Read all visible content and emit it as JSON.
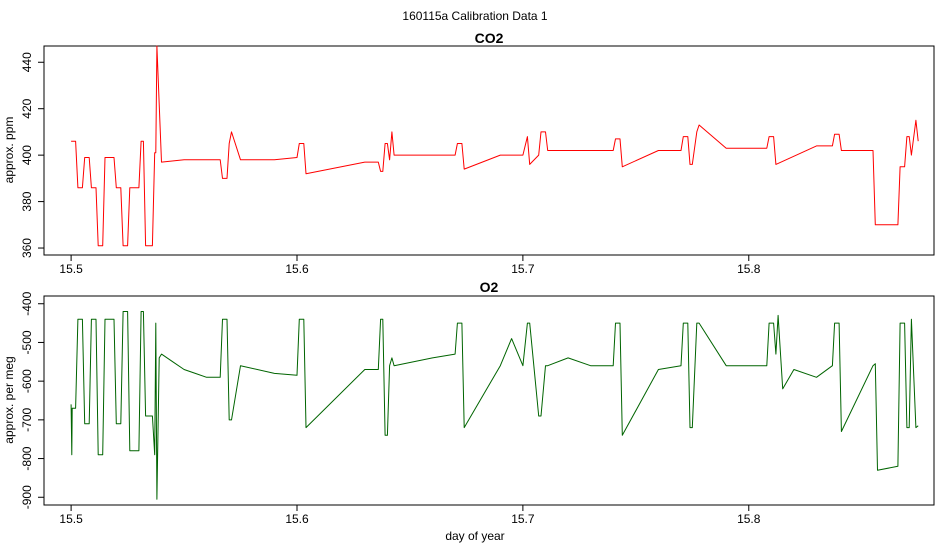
{
  "figure": {
    "title": "160115a   Calibration Data 1"
  },
  "chart_data": [
    {
      "type": "line",
      "title": "CO2",
      "xlabel": "",
      "ylabel": "approx. ppm",
      "color": "#ff0000",
      "xlim": [
        15.488,
        15.882
      ],
      "ylim": [
        357,
        447
      ],
      "x_ticks": [
        15.5,
        15.6,
        15.7,
        15.8
      ],
      "x_tick_labels": [
        "15.5",
        "15.6",
        "15.7",
        "15.8"
      ],
      "y_ticks": [
        360,
        380,
        400,
        420,
        440
      ],
      "y_tick_labels": [
        "360",
        "380",
        "400",
        "420",
        "440"
      ],
      "series": [
        {
          "x": [
            15.5,
            15.502,
            15.503,
            15.505,
            15.506,
            15.508,
            15.509,
            15.511,
            15.512,
            15.514,
            15.515,
            15.519,
            15.52,
            15.522,
            15.523,
            15.525,
            15.526,
            15.53,
            15.531,
            15.532,
            15.533,
            15.536,
            15.537,
            15.5375,
            15.538,
            15.54,
            15.55,
            15.56,
            15.566,
            15.567,
            15.569,
            15.57,
            15.571,
            15.575,
            15.59,
            15.6,
            15.601,
            15.603,
            15.604,
            15.63,
            15.636,
            15.637,
            15.638,
            15.639,
            15.64,
            15.641,
            15.642,
            15.643,
            15.66,
            15.67,
            15.671,
            15.673,
            15.674,
            15.69,
            15.7,
            15.702,
            15.703,
            15.707,
            15.708,
            15.71,
            15.711,
            15.73,
            15.74,
            15.741,
            15.743,
            15.744,
            15.76,
            15.77,
            15.771,
            15.773,
            15.774,
            15.775,
            15.777,
            15.778,
            15.79,
            15.808,
            15.809,
            15.811,
            15.812,
            15.83,
            15.837,
            15.838,
            15.84,
            15.841,
            15.855,
            15.856,
            15.866,
            15.867,
            15.869,
            15.87,
            15.871,
            15.872,
            15.874,
            15.875
          ],
          "y": [
            406,
            406,
            386,
            386,
            399,
            399,
            386,
            386,
            361,
            361,
            399,
            399,
            386,
            386,
            361,
            361,
            386,
            386,
            406,
            406,
            361,
            361,
            401,
            401,
            447,
            397,
            398,
            398,
            398,
            390,
            390,
            405,
            410,
            398,
            398,
            399,
            405,
            405,
            392,
            397,
            397,
            393,
            393,
            405,
            405,
            398,
            410,
            400,
            400,
            400,
            405,
            405,
            394,
            400,
            400,
            408,
            396,
            400,
            410,
            410,
            402,
            402,
            402,
            407,
            407,
            395,
            402,
            402,
            408,
            408,
            396,
            396,
            410,
            413,
            403,
            403,
            408,
            408,
            396,
            404,
            404,
            409,
            409,
            402,
            402,
            370,
            370,
            395,
            395,
            408,
            408,
            400,
            415,
            406
          ]
        }
      ]
    },
    {
      "type": "line",
      "title": "O2",
      "xlabel": "day of year",
      "ylabel": "approx. per meg",
      "color": "#006400",
      "xlim": [
        15.488,
        15.882
      ],
      "ylim": [
        -920,
        -380
      ],
      "x_ticks": [
        15.5,
        15.6,
        15.7,
        15.8
      ],
      "x_tick_labels": [
        "15.5",
        "15.6",
        "15.7",
        "15.8"
      ],
      "y_ticks": [
        -900,
        -800,
        -700,
        -600,
        -500,
        -400
      ],
      "y_tick_labels": [
        "-900",
        "-800",
        "-700",
        "-600",
        "-500",
        "-400"
      ],
      "series": [
        {
          "x": [
            15.5,
            15.5003,
            15.5005,
            15.502,
            15.503,
            15.505,
            15.506,
            15.508,
            15.509,
            15.511,
            15.512,
            15.514,
            15.515,
            15.519,
            15.52,
            15.522,
            15.523,
            15.525,
            15.526,
            15.53,
            15.531,
            15.532,
            15.533,
            15.536,
            15.537,
            15.5375,
            15.538,
            15.539,
            15.54,
            15.545,
            15.55,
            15.555,
            15.56,
            15.566,
            15.567,
            15.569,
            15.57,
            15.571,
            15.575,
            15.59,
            15.6,
            15.601,
            15.603,
            15.604,
            15.63,
            15.636,
            15.637,
            15.638,
            15.639,
            15.64,
            15.641,
            15.642,
            15.643,
            15.66,
            15.67,
            15.671,
            15.673,
            15.674,
            15.69,
            15.695,
            15.7,
            15.702,
            15.703,
            15.707,
            15.708,
            15.71,
            15.711,
            15.72,
            15.73,
            15.74,
            15.741,
            15.743,
            15.744,
            15.76,
            15.77,
            15.771,
            15.773,
            15.774,
            15.775,
            15.777,
            15.778,
            15.79,
            15.8,
            15.808,
            15.809,
            15.811,
            15.812,
            15.813,
            15.815,
            15.82,
            15.83,
            15.837,
            15.838,
            15.84,
            15.841,
            15.855,
            15.856,
            15.857,
            15.866,
            15.867,
            15.869,
            15.87,
            15.871,
            15.872,
            15.874,
            15.875
          ],
          "y": [
            -660,
            -790,
            -670,
            -670,
            -440,
            -440,
            -710,
            -710,
            -440,
            -440,
            -790,
            -790,
            -440,
            -440,
            -710,
            -710,
            -420,
            -420,
            -780,
            -780,
            -420,
            -420,
            -690,
            -690,
            -790,
            -450,
            -905,
            -540,
            -530,
            -550,
            -570,
            -580,
            -590,
            -590,
            -440,
            -440,
            -700,
            -700,
            -560,
            -580,
            -585,
            -440,
            -440,
            -720,
            -570,
            -570,
            -440,
            -440,
            -740,
            -740,
            -560,
            -540,
            -560,
            -540,
            -530,
            -450,
            -450,
            -720,
            -560,
            -490,
            -560,
            -450,
            -450,
            -690,
            -690,
            -560,
            -560,
            -540,
            -560,
            -560,
            -450,
            -450,
            -740,
            -570,
            -560,
            -450,
            -450,
            -720,
            -720,
            -450,
            -450,
            -560,
            -560,
            -560,
            -450,
            -450,
            -530,
            -430,
            -620,
            -570,
            -590,
            -560,
            -450,
            -450,
            -730,
            -560,
            -555,
            -830,
            -820,
            -450,
            -450,
            -720,
            -720,
            -440,
            -720,
            -715
          ]
        }
      ]
    }
  ]
}
